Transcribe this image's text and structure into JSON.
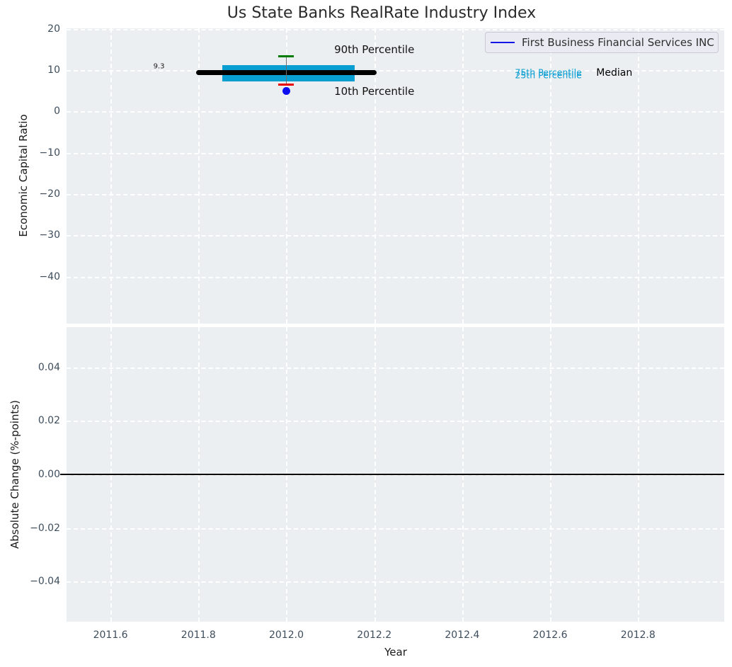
{
  "title": "Us State Banks RealRate Industry Index",
  "legend": {
    "items": [
      {
        "label": "First Business Financial Services INC",
        "color": "#1414e6"
      }
    ]
  },
  "chart_data": {
    "type": "line",
    "title": "Us State Banks RealRate Industry Index",
    "xlabel": "Year",
    "xlim": [
      2011.5,
      2012.996
    ],
    "xtick_values": [
      2011.6,
      2011.8,
      2012.0,
      2012.2,
      2012.4,
      2012.6,
      2012.8
    ],
    "xtick_labels": [
      "2011.6",
      "2011.8",
      "2012.0",
      "2012.2",
      "2012.4",
      "2012.6",
      "2012.8"
    ],
    "grid": {
      "color": "#ffffff",
      "style": "dashed"
    },
    "background": "#eceff1",
    "legend_position": "upper right",
    "panels": [
      {
        "name": "Economic Capital Ratio",
        "ylabel": "Economic Capital Ratio",
        "ylim": [
          -51.4,
          20.1
        ],
        "ytick_values": [
          20,
          10,
          0,
          -10,
          -20,
          -30,
          -40
        ],
        "ytick_labels": [
          "20",
          "10",
          "0",
          "−10",
          "−20",
          "−30",
          "−40"
        ],
        "series": [
          {
            "name": "iqr-band",
            "type": "band",
            "label": "25th–75th Percentile",
            "x": [
              2011.855,
              2012.155
            ],
            "y_low": 7.3,
            "y_high": 11.2,
            "color": "#099ed2"
          },
          {
            "name": "median-line",
            "type": "line",
            "label": "Median",
            "x": [
              2011.8,
              2012.2
            ],
            "y": [
              9.3,
              9.3
            ],
            "color": "#000000",
            "linewidth": 7
          },
          {
            "name": "percentile-whisker",
            "type": "errorbar",
            "label": "10th–90th Percentile",
            "x": 2012.0,
            "y_low": 6.4,
            "y_high": 13.4,
            "line_color": "#6e6e6e",
            "cap_high_color": "#007d00",
            "cap_low_color": "#e60000"
          },
          {
            "name": "company-point",
            "type": "point",
            "label": "First Business Financial Services INC",
            "x": 2012.0,
            "y": 5.0,
            "color": "#0d0df2"
          }
        ],
        "annotations": [
          {
            "name": "median-value-label",
            "text": "9.3",
            "x": 2011.723,
            "y": 10.9,
            "color": "#1a1a1a",
            "size": 10,
            "ha": "right",
            "va": "center"
          },
          {
            "name": "p90-label",
            "text": "90th Percentile",
            "x": 2012.2,
            "y": 14.9,
            "color": "#111111",
            "size": 15,
            "ha": "center",
            "va": "center"
          },
          {
            "name": "p10-label",
            "text": "10th Percentile",
            "x": 2012.2,
            "y": 4.9,
            "color": "#111111",
            "size": 15,
            "ha": "center",
            "va": "center"
          },
          {
            "name": "p75-label",
            "text": "75th Percentile",
            "x": 2012.52,
            "y": 9.55,
            "color": "#099ed2",
            "size": 12.5,
            "ha": "left",
            "va": "center"
          },
          {
            "name": "p25-label",
            "text": "25th Percentile",
            "x": 2012.52,
            "y": 8.85,
            "color": "#099ed2",
            "size": 12.5,
            "ha": "left",
            "va": "center"
          },
          {
            "name": "median-label",
            "text": "Median",
            "x": 2012.705,
            "y": 9.3,
            "color": "#000000",
            "size": 14,
            "ha": "left",
            "va": "center"
          }
        ]
      },
      {
        "name": "Absolute Change",
        "ylabel": "Absolute Change (%-points)",
        "ylim": [
          -0.055,
          0.055
        ],
        "ytick_values": [
          0.04,
          0.02,
          0.0,
          -0.02,
          -0.04
        ],
        "ytick_labels": [
          "0.04",
          "0.02",
          "0.00",
          "−0.02",
          "−0.04"
        ],
        "series": [
          {
            "name": "zero-line",
            "type": "hline",
            "y": 0.0,
            "color": "#000000",
            "linewidth": 2
          }
        ],
        "annotations": []
      }
    ]
  }
}
